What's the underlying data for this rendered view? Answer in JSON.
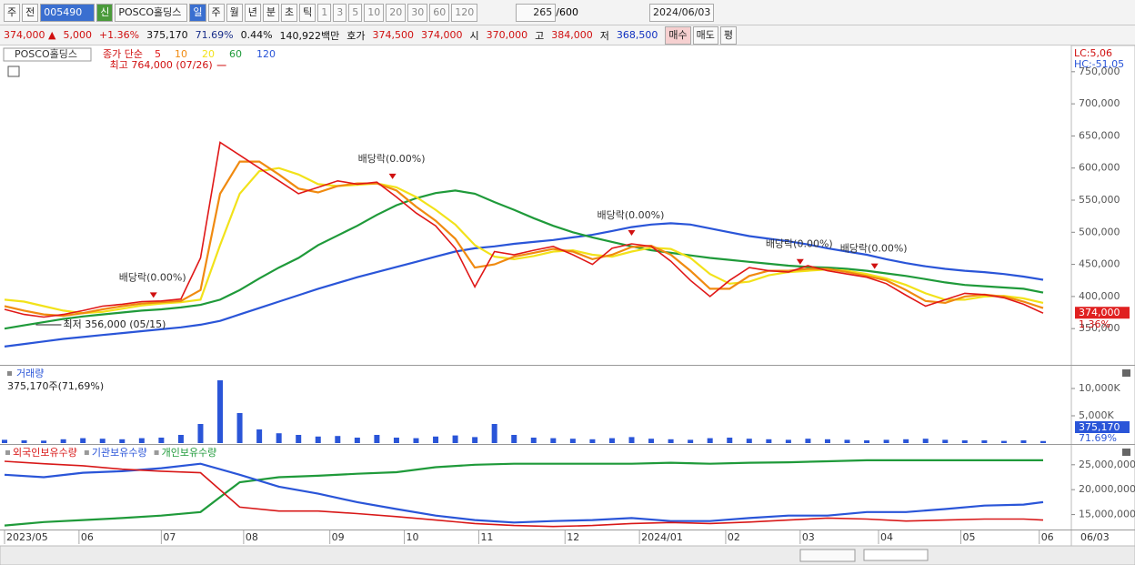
{
  "toolbar": {
    "market": "주",
    "scope": "전",
    "code": "005490",
    "new": "신",
    "name": "POSCO홀딩스",
    "periods": [
      "일",
      "주",
      "월",
      "년",
      "분",
      "초",
      "틱"
    ],
    "intervals": [
      "1",
      "3",
      "5",
      "10",
      "20",
      "30",
      "60",
      "120"
    ],
    "count": "265",
    "max": "/600",
    "date": "2024/06/03"
  },
  "quote_bar": {
    "items": [
      {
        "text": "374,000 ▲",
        "color": "#d01010"
      },
      {
        "text": "5,000",
        "color": "#d01010"
      },
      {
        "text": "+1.36%",
        "color": "#d01010"
      },
      {
        "text": "375,170",
        "color": "#111"
      },
      {
        "text": "71.69%",
        "color": "#1a2f8a"
      },
      {
        "text": "0.44%",
        "color": "#111"
      },
      {
        "text": "140,922백만",
        "color": "#111"
      },
      {
        "text": "호가",
        "color": "#111"
      },
      {
        "text": "374,500",
        "color": "#d01010"
      },
      {
        "text": "374,000",
        "color": "#d01010"
      },
      {
        "text": "시",
        "color": "#111"
      },
      {
        "text": "370,000",
        "color": "#d01010"
      },
      {
        "text": "고",
        "color": "#111"
      },
      {
        "text": "384,000",
        "color": "#d01010"
      },
      {
        "text": "저",
        "color": "#111"
      },
      {
        "text": "368,500",
        "color": "#1030c0"
      }
    ],
    "buttons": [
      "매수",
      "매도",
      "평"
    ]
  },
  "chart_data": [
    {
      "type": "line",
      "title": "POSCO홀딩스",
      "legend_prefix": "종가 단순",
      "lc_label": "LC:5,06",
      "hc_label": "HC:-51,05",
      "last_label": "374,000",
      "change_label": "1.36%",
      "xlim": [
        0,
        265
      ],
      "ylim": [
        295000,
        788000
      ],
      "yticks": [
        {
          "value": 750000,
          "label": "750,000"
        },
        {
          "value": 700000,
          "label": "700,000"
        },
        {
          "value": 650000,
          "label": "650,000"
        },
        {
          "value": 600000,
          "label": "600,000"
        },
        {
          "value": 550000,
          "label": "550,000"
        },
        {
          "value": 500000,
          "label": "500,000"
        },
        {
          "value": 450000,
          "label": "450,000"
        },
        {
          "value": 400000,
          "label": "400,000"
        },
        {
          "value": 350000,
          "label": "350,000"
        }
      ],
      "x": [
        0,
        5,
        10,
        15,
        20,
        25,
        30,
        35,
        40,
        45,
        50,
        55,
        60,
        65,
        70,
        75,
        80,
        85,
        90,
        95,
        100,
        105,
        110,
        115,
        120,
        125,
        130,
        135,
        140,
        145,
        150,
        155,
        160,
        165,
        170,
        175,
        180,
        185,
        190,
        195,
        200,
        205,
        210,
        215,
        220,
        225,
        230,
        235,
        240,
        245,
        250,
        255,
        260,
        265
      ],
      "series": [
        {
          "name": "5",
          "color": "#e01818",
          "values": [
            380000,
            372000,
            368000,
            372000,
            378000,
            385000,
            388000,
            392000,
            393000,
            396000,
            460000,
            640000,
            620000,
            600000,
            580000,
            560000,
            570000,
            580000,
            575000,
            578000,
            555000,
            530000,
            510000,
            475000,
            415000,
            470000,
            465000,
            472000,
            478000,
            465000,
            450000,
            475000,
            482000,
            478000,
            455000,
            425000,
            400000,
            425000,
            445000,
            440000,
            438000,
            448000,
            440000,
            435000,
            430000,
            420000,
            402000,
            385000,
            395000,
            405000,
            403000,
            398000,
            388000,
            374000
          ]
        },
        {
          "name": "10",
          "color": "#f08a10",
          "values": [
            385000,
            378000,
            372000,
            370000,
            374000,
            380000,
            385000,
            389000,
            391000,
            393000,
            410000,
            560000,
            610000,
            610000,
            590000,
            568000,
            562000,
            572000,
            576000,
            576000,
            565000,
            540000,
            518000,
            490000,
            445000,
            450000,
            462000,
            468000,
            474000,
            470000,
            458000,
            465000,
            477000,
            479000,
            465000,
            440000,
            412000,
            412000,
            432000,
            440000,
            440000,
            443000,
            443000,
            438000,
            432000,
            425000,
            410000,
            393000,
            390000,
            400000,
            403000,
            400000,
            392000,
            382000
          ]
        },
        {
          "name": "20",
          "color": "#f2e21a",
          "values": [
            395000,
            392000,
            385000,
            378000,
            374000,
            376000,
            381000,
            386000,
            389000,
            391000,
            395000,
            480000,
            560000,
            595000,
            600000,
            590000,
            575000,
            572000,
            574000,
            576000,
            570000,
            555000,
            535000,
            512000,
            480000,
            462000,
            458000,
            463000,
            470000,
            472000,
            465000,
            462000,
            470000,
            476000,
            474000,
            460000,
            435000,
            420000,
            423000,
            433000,
            438000,
            440000,
            442000,
            440000,
            435000,
            428000,
            418000,
            405000,
            395000,
            395000,
            400000,
            401000,
            397000,
            390000
          ]
        },
        {
          "name": "60",
          "color": "#1f9a3a",
          "values": [
            350000,
            355000,
            360000,
            365000,
            369000,
            372000,
            375000,
            378000,
            380000,
            383000,
            387000,
            395000,
            410000,
            428000,
            445000,
            460000,
            480000,
            495000,
            510000,
            527000,
            542000,
            553000,
            561000,
            565000,
            560000,
            547000,
            535000,
            522000,
            510000,
            500000,
            492000,
            485000,
            478000,
            472000,
            468000,
            464000,
            460000,
            457000,
            454000,
            451000,
            448000,
            446000,
            445000,
            443000,
            440000,
            436000,
            432000,
            427000,
            422000,
            418000,
            416000,
            414000,
            412000,
            406000
          ]
        },
        {
          "name": "120",
          "color": "#2a55d8",
          "values": [
            322000,
            326000,
            330000,
            334000,
            337000,
            340000,
            343000,
            346000,
            349000,
            352000,
            356000,
            362000,
            372000,
            382000,
            392000,
            402000,
            412000,
            421000,
            430000,
            438000,
            446000,
            454000,
            462000,
            470000,
            475000,
            478000,
            482000,
            485000,
            488000,
            492000,
            496000,
            502000,
            508000,
            512000,
            514000,
            512000,
            506000,
            500000,
            494000,
            490000,
            486000,
            481000,
            475000,
            470000,
            465000,
            458000,
            452000,
            447000,
            443000,
            440000,
            438000,
            435000,
            431000,
            426000
          ]
        }
      ],
      "annotations": [
        {
          "text": "최고 764,000 (07/26)",
          "x": 57,
          "y": 764000
        },
        {
          "text": "최저 356,000 (05/15)",
          "x": 8,
          "y": 356000
        },
        {
          "text": "배당락(0.00%)",
          "x": 38,
          "y": 395000
        },
        {
          "text": "배당락(0.00%)",
          "x": 99,
          "y": 580000
        },
        {
          "text": "배당락(0.00%)",
          "x": 160,
          "y": 492000
        },
        {
          "text": "배당락(0.00%)",
          "x": 203,
          "y": 447000
        },
        {
          "text": "배당락(0.00%)",
          "x": 222,
          "y": 440000
        }
      ]
    },
    {
      "type": "bar",
      "title": "거래량",
      "subtitle": "375,170주(71,69%)",
      "last_label": "375,170",
      "last_pct": "71.69%",
      "color": "#2a55d8",
      "xlim": [
        0,
        265
      ],
      "ylim": [
        0,
        14000000
      ],
      "yticks": [
        {
          "value": 10000000,
          "label": "10,000K"
        },
        {
          "value": 5000000,
          "label": "5,000K"
        }
      ],
      "x": [
        0,
        5,
        10,
        15,
        20,
        25,
        30,
        35,
        40,
        45,
        50,
        55,
        60,
        65,
        70,
        75,
        80,
        85,
        90,
        95,
        100,
        105,
        110,
        115,
        120,
        125,
        130,
        135,
        140,
        145,
        150,
        155,
        160,
        165,
        170,
        175,
        180,
        185,
        190,
        195,
        200,
        205,
        210,
        215,
        220,
        225,
        230,
        235,
        240,
        245,
        250,
        255,
        260,
        265
      ],
      "values": [
        600000,
        500000,
        450000,
        700000,
        900000,
        800000,
        700000,
        900000,
        1000000,
        1500000,
        3500000,
        11500000,
        5500000,
        2500000,
        1800000,
        1500000,
        1200000,
        1300000,
        1000000,
        1500000,
        1000000,
        900000,
        1200000,
        1400000,
        1100000,
        3500000,
        1500000,
        1000000,
        900000,
        800000,
        700000,
        900000,
        1100000,
        800000,
        700000,
        600000,
        900000,
        1000000,
        800000,
        700000,
        600000,
        800000,
        700000,
        600000,
        500000,
        600000,
        700000,
        800000,
        600000,
        500000,
        500000,
        400000,
        500000,
        375170
      ]
    },
    {
      "type": "line",
      "end_label": "06/03",
      "xlim": [
        0,
        265
      ],
      "ylim": [
        12000000,
        28800000
      ],
      "yticks": [
        {
          "value": 25000000,
          "label": "25,000,000"
        },
        {
          "value": 20000000,
          "label": "20,000,000"
        },
        {
          "value": 15000000,
          "label": "15,000,000"
        }
      ],
      "xticks": [
        {
          "value": 0,
          "label": "2023/05"
        },
        {
          "value": 19,
          "label": "06"
        },
        {
          "value": 40,
          "label": "07"
        },
        {
          "value": 61,
          "label": "08"
        },
        {
          "value": 83,
          "label": "09"
        },
        {
          "value": 102,
          "label": "10"
        },
        {
          "value": 121,
          "label": "11"
        },
        {
          "value": 143,
          "label": "12"
        },
        {
          "value": 162,
          "label": "2024/01"
        },
        {
          "value": 184,
          "label": "02"
        },
        {
          "value": 203,
          "label": "03"
        },
        {
          "value": 223,
          "label": "04"
        },
        {
          "value": 244,
          "label": "05"
        },
        {
          "value": 264,
          "label": "06"
        }
      ],
      "x": [
        0,
        10,
        20,
        30,
        40,
        50,
        60,
        70,
        80,
        90,
        100,
        110,
        120,
        130,
        140,
        150,
        160,
        170,
        180,
        190,
        200,
        210,
        220,
        230,
        240,
        250,
        260,
        265
      ],
      "series": [
        {
          "name": "외국인보유수량",
          "color": "#d81818",
          "values": [
            25700000,
            25200000,
            24800000,
            24100000,
            23700000,
            23400000,
            16500000,
            15700000,
            15700000,
            15200000,
            14600000,
            13900000,
            13200000,
            12800000,
            12600000,
            12800000,
            13200000,
            13400000,
            13200000,
            13500000,
            13900000,
            14300000,
            14100000,
            13700000,
            13900000,
            14100000,
            14100000,
            13900000
          ]
        },
        {
          "name": "기관보유수량",
          "color": "#2a55d8",
          "values": [
            23000000,
            22500000,
            23400000,
            23700000,
            24300000,
            25200000,
            23000000,
            20600000,
            19200000,
            17500000,
            16100000,
            14800000,
            13900000,
            13400000,
            13700000,
            13900000,
            14300000,
            13700000,
            13700000,
            14300000,
            14800000,
            14800000,
            15500000,
            15500000,
            16100000,
            16800000,
            17000000,
            17500000
          ]
        },
        {
          "name": "개인보유수량",
          "color": "#1f9a3a",
          "values": [
            12800000,
            13500000,
            13900000,
            14300000,
            14800000,
            15500000,
            21500000,
            22500000,
            22800000,
            23200000,
            23500000,
            24500000,
            25000000,
            25200000,
            25200000,
            25200000,
            25200000,
            25400000,
            25200000,
            25400000,
            25500000,
            25700000,
            25900000,
            25900000,
            25900000,
            25900000,
            25900000,
            25900000
          ]
        }
      ]
    }
  ]
}
